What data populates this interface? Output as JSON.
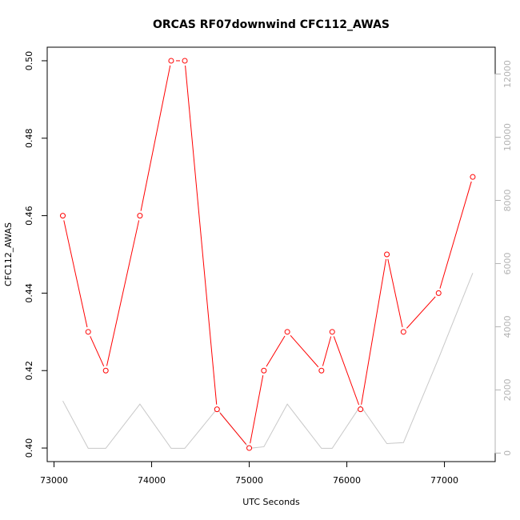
{
  "chart_data": {
    "type": "line",
    "title": "ORCAS RF07downwind CFC112_AWAS",
    "xlabel": "UTC Seconds",
    "ylabel": "CFC112_AWAS",
    "xlim": [
      72930,
      77520
    ],
    "ylim": [
      0.3965,
      0.5035
    ],
    "y2lim": [
      -270,
      12850
    ],
    "x_ticks": [
      73000,
      74000,
      75000,
      76000,
      77000
    ],
    "x_tick_labels": [
      "73000",
      "74000",
      "75000",
      "76000",
      "77000"
    ],
    "y_ticks": [
      0.4,
      0.42,
      0.44,
      0.46,
      0.48,
      0.5
    ],
    "y_tick_labels": [
      "0.40",
      "0.42",
      "0.44",
      "0.46",
      "0.48",
      "0.50"
    ],
    "y2_ticks": [
      0,
      2000,
      4000,
      6000,
      8000,
      10000,
      12000
    ],
    "y2_tick_labels": [
      "0",
      "2000",
      "4000",
      "6000",
      "8000",
      "10000",
      "12000"
    ],
    "series": [
      {
        "color": "#ff0000",
        "axis": "left",
        "markers": true,
        "x": [
          73090,
          73350,
          73530,
          73880,
          74200,
          74340,
          74670,
          75000,
          75150,
          75390,
          75740,
          75850,
          76140,
          76410,
          76580,
          76940,
          77290
        ],
        "y": [
          0.46,
          0.43,
          0.42,
          0.46,
          0.5,
          0.5,
          0.41,
          0.4,
          0.42,
          0.43,
          0.42,
          0.43,
          0.41,
          0.45,
          0.43,
          0.44,
          0.47
        ]
      },
      {
        "color": "#c8c8c8",
        "axis": "right",
        "markers": false,
        "x": [
          73090,
          73350,
          73530,
          73880,
          74200,
          74340,
          74670,
          75000,
          75150,
          75390,
          75740,
          75850,
          76140,
          76410,
          76580,
          76940,
          77290
        ],
        "y": [
          1650,
          150,
          150,
          1550,
          150,
          150,
          1400,
          150,
          200,
          1550,
          150,
          150,
          1500,
          300,
          330,
          3000,
          5700
        ]
      }
    ]
  }
}
